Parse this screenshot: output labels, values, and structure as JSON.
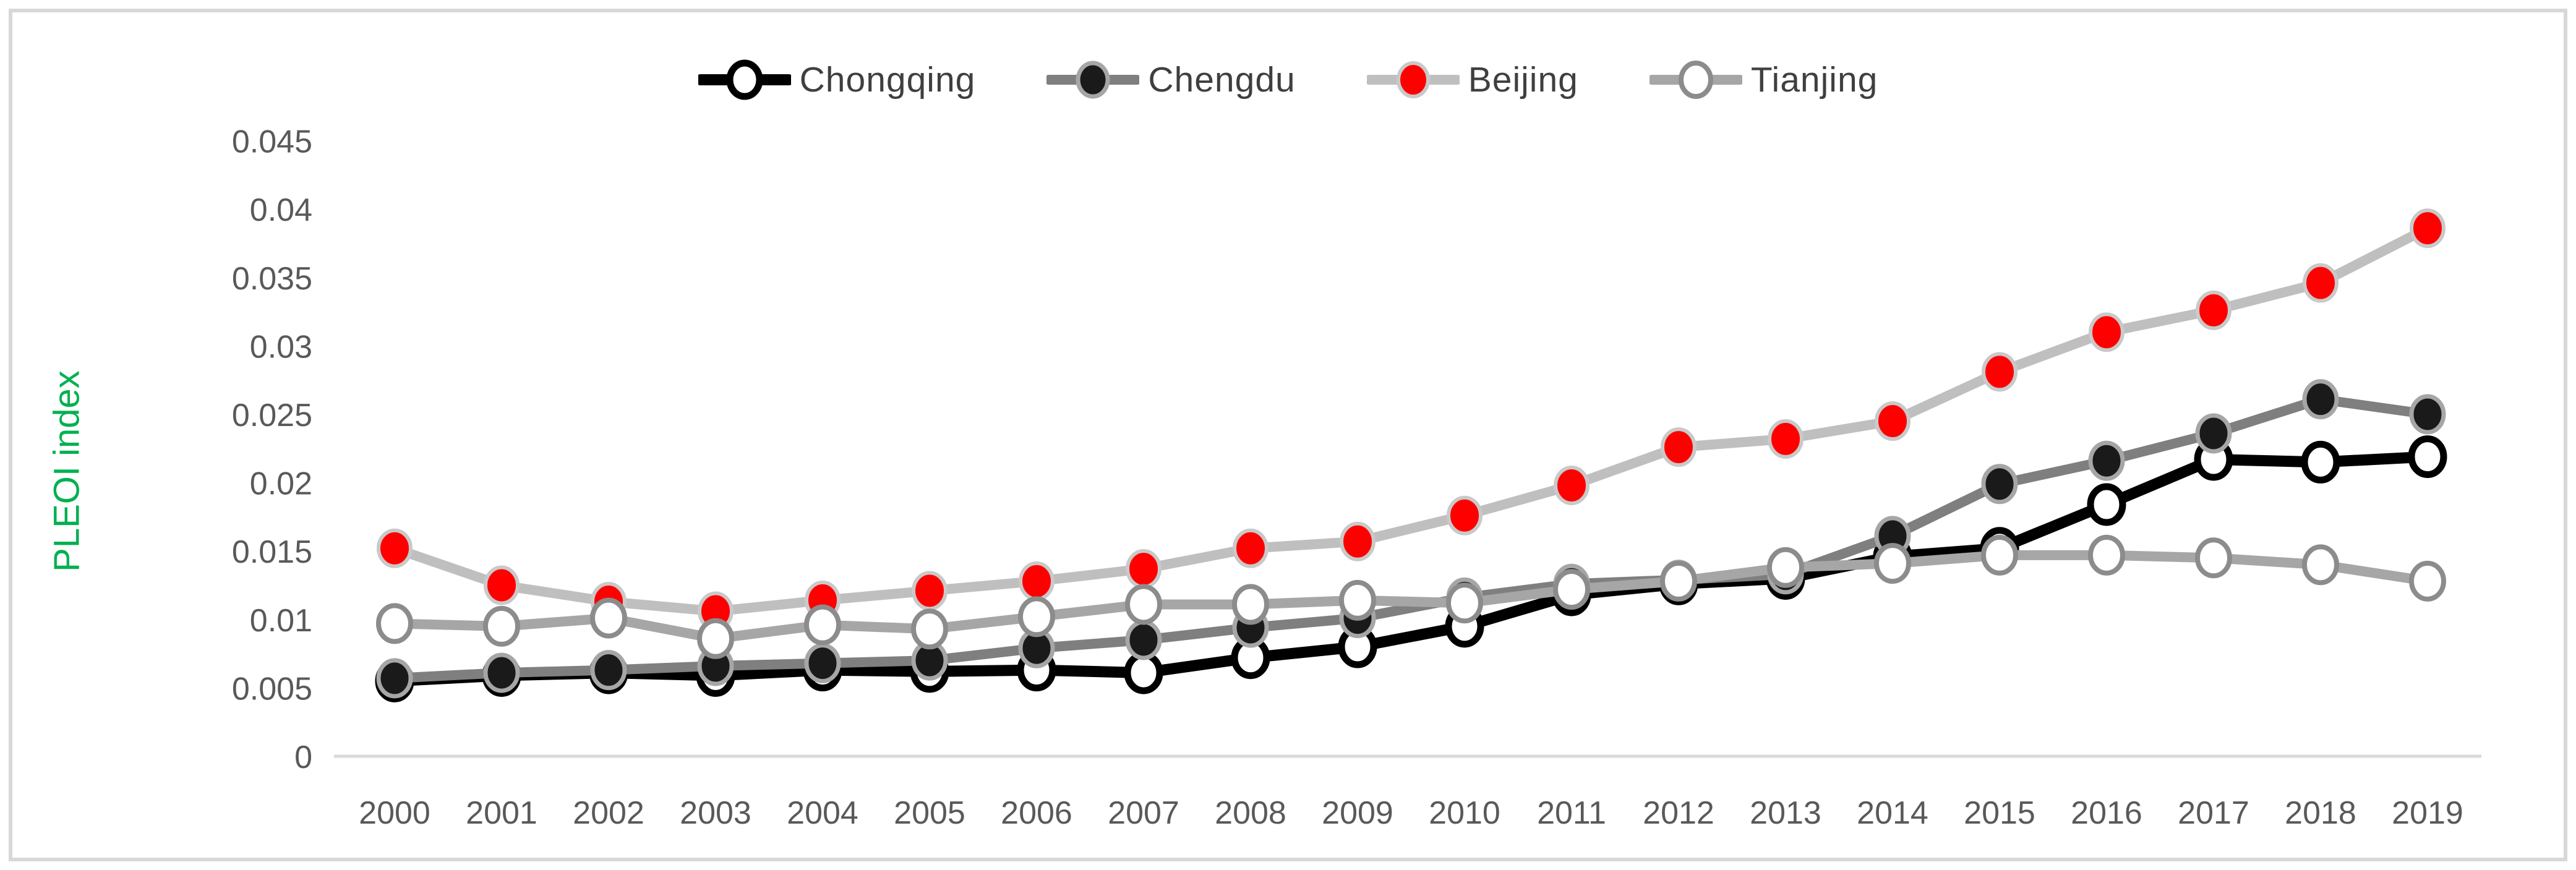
{
  "figure": {
    "y_axis_title": "PLEOI index",
    "y_axis_title_color": "#00B050",
    "axis_color": "#D9D9D9",
    "tick_label_color": "#595959",
    "legend_label_color": "#3F3F3F",
    "background_color": "#FFFFFF",
    "frame_border_color": "#D8D8D8"
  },
  "chart_data": {
    "type": "line",
    "title": "",
    "xlabel": "",
    "ylabel": "PLEOI index",
    "ylim": [
      0,
      0.045
    ],
    "y_ticks": [
      0,
      0.005,
      0.01,
      0.015,
      0.02,
      0.025,
      0.03,
      0.035,
      0.04,
      0.045
    ],
    "y_tick_labels": [
      "0",
      "0.005",
      "0.01",
      "0.015",
      "0.02",
      "0.025",
      "0.03",
      "0.035",
      "0.04",
      "0.045"
    ],
    "grid": false,
    "legend_position": "top-center",
    "x": [
      2000,
      2001,
      2002,
      2003,
      2004,
      2005,
      2006,
      2007,
      2008,
      2009,
      2010,
      2011,
      2012,
      2013,
      2014,
      2015,
      2016,
      2017,
      2018,
      2019
    ],
    "series": [
      {
        "name": "Chongqing",
        "values": [
          0.0055,
          0.0059,
          0.0061,
          0.0059,
          0.0063,
          0.0062,
          0.0063,
          0.0061,
          0.0072,
          0.008,
          0.0095,
          0.0118,
          0.0126,
          0.013,
          0.0146,
          0.0152,
          0.0184,
          0.0217,
          0.0215,
          0.0219
        ],
        "line_color": "#000000",
        "line_width": 18,
        "marker_fill": "#FFFFFF",
        "marker_stroke": "#000000",
        "marker_stroke_width": 11
      },
      {
        "name": "Chengdu",
        "values": [
          0.0057,
          0.0061,
          0.0063,
          0.0066,
          0.0068,
          0.007,
          0.0079,
          0.0085,
          0.0094,
          0.0101,
          0.0116,
          0.0126,
          0.0129,
          0.0133,
          0.0161,
          0.0199,
          0.0216,
          0.0236,
          0.0261,
          0.025
        ],
        "line_color": "#7F7F7F",
        "line_width": 16,
        "marker_fill": "#1A1A1A",
        "marker_stroke": "#A6A6A6",
        "marker_stroke_width": 7
      },
      {
        "name": "Beijing",
        "values": [
          0.0152,
          0.0125,
          0.0113,
          0.0106,
          0.0114,
          0.0121,
          0.0128,
          0.0137,
          0.0152,
          0.0157,
          0.0176,
          0.0198,
          0.0226,
          0.0232,
          0.0245,
          0.0281,
          0.031,
          0.0326,
          0.0346,
          0.0386
        ],
        "line_color": "#BFBFBF",
        "line_width": 16,
        "marker_fill": "#FF0000",
        "marker_stroke": "#C9C9C9",
        "marker_stroke_width": 6
      },
      {
        "name": "Tianjing",
        "values": [
          0.0097,
          0.0095,
          0.0101,
          0.0086,
          0.0096,
          0.0093,
          0.0102,
          0.0111,
          0.0111,
          0.0114,
          0.0112,
          0.0122,
          0.0128,
          0.0138,
          0.0141,
          0.0147,
          0.0147,
          0.0145,
          0.014,
          0.0128
        ],
        "line_color": "#A6A6A6",
        "line_width": 16,
        "marker_fill": "#FFFFFF",
        "marker_stroke": "#8C8C8C",
        "marker_stroke_width": 8
      }
    ]
  }
}
